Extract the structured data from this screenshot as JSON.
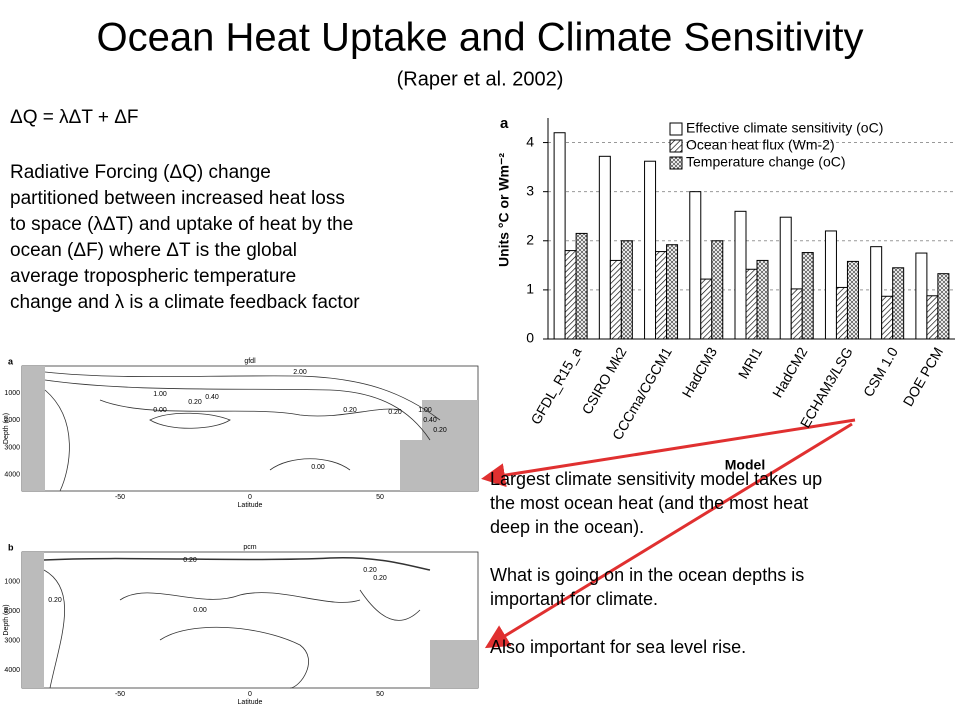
{
  "title": "Ocean Heat Uptake and Climate Sensitivity",
  "subtitle": "(Raper et al. 2002)",
  "intro": {
    "equation": "ΔQ = λΔT + ΔF",
    "lines": [
      "Radiative Forcing (ΔQ) change",
      "partitioned between increased heat loss",
      "to space (λΔT) and uptake of heat by the",
      "ocean (ΔF) where ΔT is the global",
      "average tropospheric temperature",
      "change and λ is a climate feedback factor"
    ]
  },
  "notes": {
    "paragraphs": [
      [
        "Largest climate sensitivity model takes up",
        "the most ocean heat (and the most heat",
        "deep in the ocean)."
      ],
      [
        "What is going on in the ocean depths is",
        "important for climate."
      ],
      [
        "Also important for sea level rise."
      ]
    ]
  },
  "chart_data": {
    "type": "bar",
    "panel_label": "a",
    "ylabel": "Units °C or Wm⁻²",
    "xlabel": "Model",
    "categories": [
      "GFDL_R15_a",
      "CSIRO Mk2",
      "CCCma/CGCM1",
      "HadCM3",
      "MRI1",
      "HadCM2",
      "ECHAM3/LSG",
      "CSM 1.0",
      "DOE PCM"
    ],
    "series": [
      {
        "name": "Effective climate sensitivity (oC)",
        "color": "#ffffff",
        "pattern": "none",
        "values": [
          4.2,
          3.72,
          3.62,
          3.0,
          2.6,
          2.48,
          2.2,
          1.88,
          1.75
        ]
      },
      {
        "name": "Ocean heat flux (Wm-2)",
        "color": "#ffffff",
        "pattern": "hatch",
        "values": [
          1.8,
          1.6,
          1.78,
          1.22,
          1.42,
          1.02,
          1.05,
          0.87,
          0.88
        ]
      },
      {
        "name": "Temperature change (oC)",
        "color": "#ffffff",
        "pattern": "crosshatch",
        "values": [
          2.15,
          2.0,
          1.92,
          2.0,
          1.6,
          1.76,
          1.58,
          1.45,
          1.33
        ]
      }
    ],
    "ylim": [
      0,
      4.5
    ],
    "yticks": [
      0,
      1,
      2,
      3,
      4
    ],
    "grid": true,
    "legend": "upper right"
  },
  "contour_panels": [
    {
      "label": "a",
      "name": "gfdl",
      "xlabel": "Latitude",
      "ylabel": "Depth (m)",
      "xticks": [
        "-50",
        "0",
        "50"
      ],
      "yticks": [
        "1000",
        "2000",
        "3000",
        "4000"
      ],
      "contour_labels": [
        "1.00",
        "0.20",
        "0.40",
        "2.00",
        "0.20",
        "0.20",
        "1.00",
        "0.40",
        "0.20",
        "0.00",
        "0.00"
      ]
    },
    {
      "label": "b",
      "name": "pcm",
      "xlabel": "Latitude",
      "ylabel": "Depth (m)",
      "xticks": [
        "-50",
        "0",
        "50"
      ],
      "yticks": [
        "1000",
        "2000",
        "3000",
        "4000"
      ],
      "contour_labels": [
        "0.20",
        "0.20",
        "0.20",
        "0.00",
        "0.20"
      ]
    }
  ]
}
